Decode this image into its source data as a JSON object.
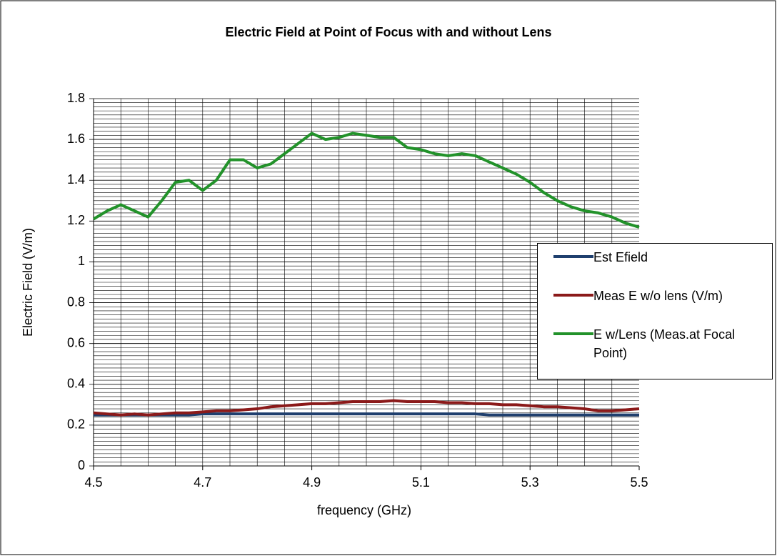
{
  "chart_data": {
    "type": "line",
    "title": "Electric Field at Point of Focus with and without Lens",
    "x_label": "frequency (GHz)",
    "y_label": "Electric Field (V/m)",
    "x": [
      4.5,
      4.525,
      4.55,
      4.575,
      4.6,
      4.625,
      4.65,
      4.675,
      4.7,
      4.725,
      4.75,
      4.775,
      4.8,
      4.825,
      4.85,
      4.875,
      4.9,
      4.925,
      4.95,
      4.975,
      5.0,
      5.025,
      5.05,
      5.075,
      5.1,
      5.125,
      5.15,
      5.175,
      5.2,
      5.225,
      5.25,
      5.275,
      5.3,
      5.325,
      5.35,
      5.375,
      5.4,
      5.425,
      5.45,
      5.475,
      5.5
    ],
    "series": [
      {
        "name": "Est Efield",
        "color": "#1f3f6e",
        "values": [
          0.25,
          0.25,
          0.25,
          0.25,
          0.25,
          0.25,
          0.25,
          0.25,
          0.255,
          0.255,
          0.255,
          0.255,
          0.255,
          0.255,
          0.255,
          0.255,
          0.255,
          0.255,
          0.255,
          0.255,
          0.255,
          0.255,
          0.255,
          0.255,
          0.255,
          0.255,
          0.255,
          0.255,
          0.255,
          0.25,
          0.25,
          0.25,
          0.25,
          0.25,
          0.25,
          0.25,
          0.25,
          0.25,
          0.25,
          0.25,
          0.25
        ]
      },
      {
        "name": "Meas E w/o lens (V/m)",
        "color": "#8b1a1a",
        "values": [
          0.26,
          0.255,
          0.25,
          0.255,
          0.25,
          0.255,
          0.26,
          0.26,
          0.265,
          0.27,
          0.27,
          0.275,
          0.28,
          0.29,
          0.295,
          0.3,
          0.305,
          0.305,
          0.31,
          0.315,
          0.315,
          0.315,
          0.32,
          0.315,
          0.315,
          0.315,
          0.31,
          0.31,
          0.305,
          0.305,
          0.3,
          0.3,
          0.295,
          0.29,
          0.29,
          0.285,
          0.28,
          0.27,
          0.27,
          0.275,
          0.28
        ]
      },
      {
        "name": "E w/Lens (Meas.at Focal Point)",
        "color": "#22922a",
        "values": [
          1.21,
          1.25,
          1.28,
          1.25,
          1.22,
          1.3,
          1.39,
          1.4,
          1.35,
          1.4,
          1.5,
          1.5,
          1.46,
          1.48,
          1.53,
          1.58,
          1.63,
          1.6,
          1.61,
          1.63,
          1.62,
          1.61,
          1.61,
          1.56,
          1.55,
          1.53,
          1.52,
          1.53,
          1.52,
          1.49,
          1.46,
          1.43,
          1.39,
          1.34,
          1.3,
          1.27,
          1.25,
          1.24,
          1.22,
          1.19,
          1.17
        ]
      }
    ],
    "xlim": [
      4.5,
      5.5
    ],
    "xticks": [
      4.5,
      4.7,
      4.9,
      5.1,
      5.3,
      5.5
    ],
    "ylim": [
      0,
      1.8
    ],
    "yticks": [
      0,
      0.2,
      0.4,
      0.6,
      0.8,
      1,
      1.2,
      1.4,
      1.6,
      1.8
    ],
    "grid": true,
    "xgrid_divisions": 4,
    "ygrid_divisions": 10,
    "legend": "right"
  }
}
